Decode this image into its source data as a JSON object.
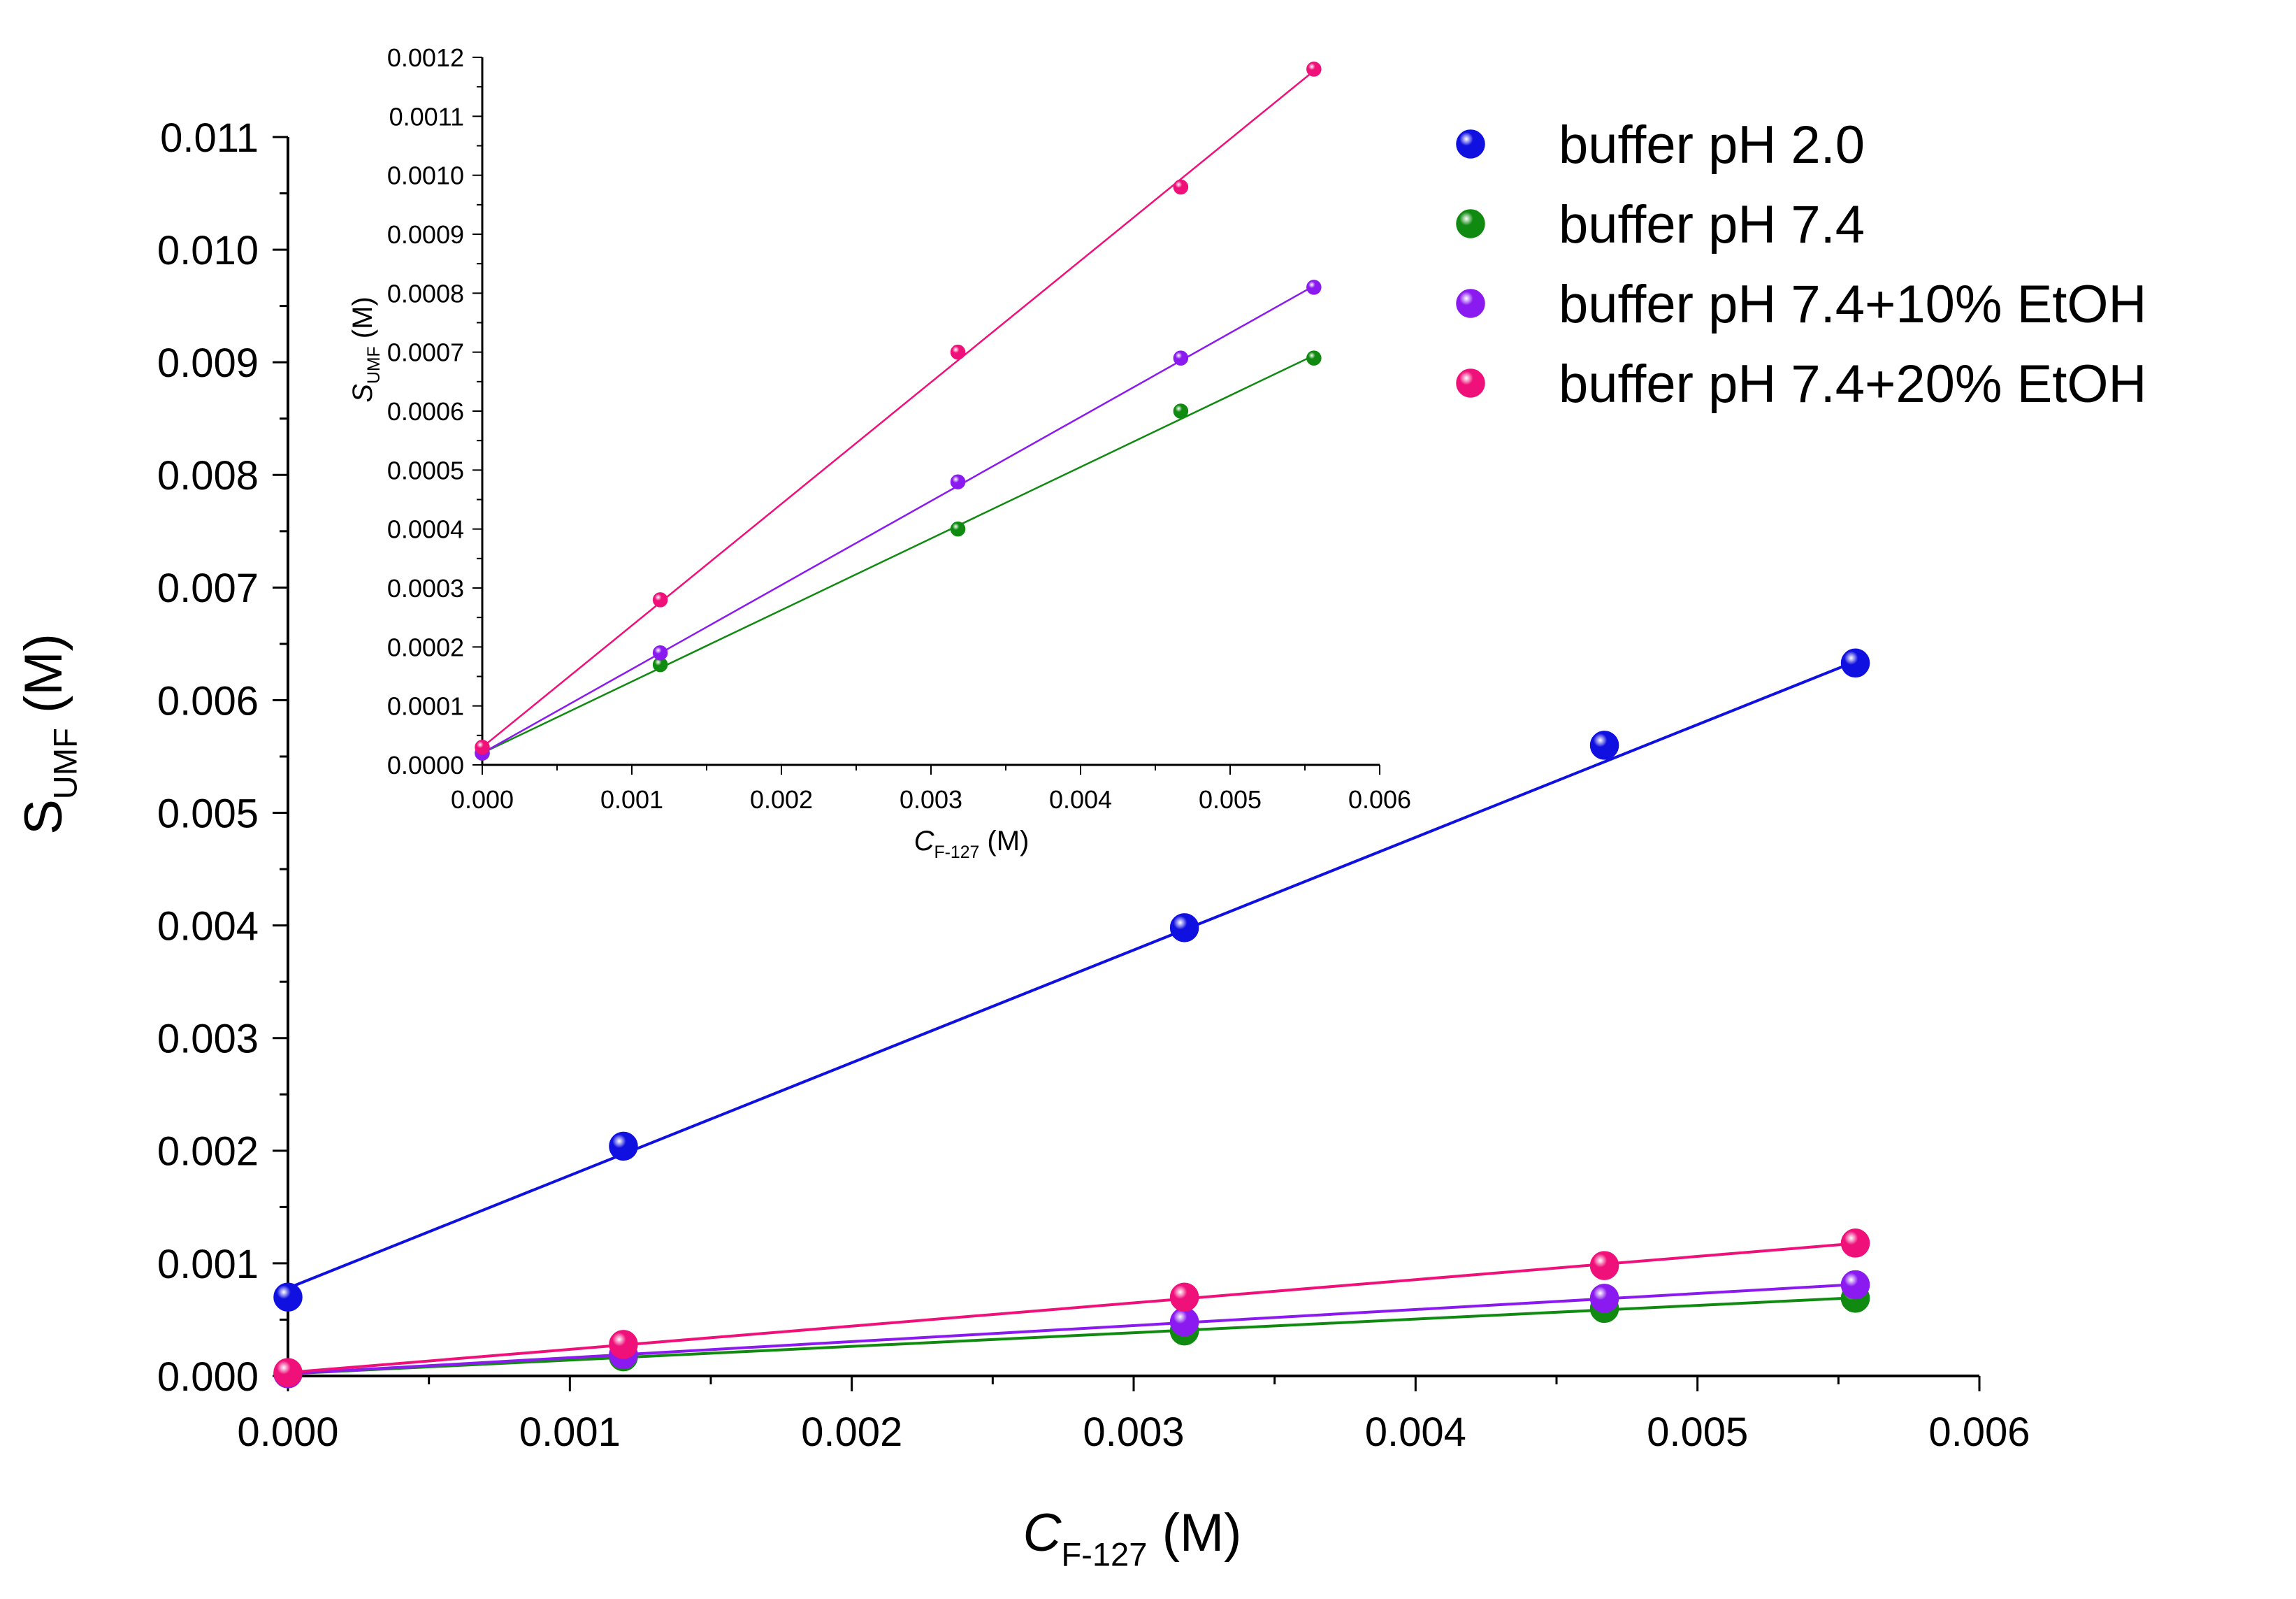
{
  "chart_data": [
    {
      "id": "main",
      "type": "scatter",
      "title": "",
      "xlabel": {
        "main": "C",
        "sub": "F-127",
        "unit": "(M)"
      },
      "ylabel": {
        "main": "S",
        "sub": "UMF",
        "unit": "(M)"
      },
      "xlim": [
        0,
        0.006
      ],
      "ylim": [
        0,
        0.011
      ],
      "x_ticks": [
        "0.000",
        "0.001",
        "0.002",
        "0.003",
        "0.004",
        "0.005",
        "0.006"
      ],
      "y_ticks": [
        "0.000",
        "0.001",
        "0.002",
        "0.003",
        "0.004",
        "0.005",
        "0.006",
        "0.007",
        "0.008",
        "0.009",
        "0.010",
        "0.011"
      ],
      "legend_position": "top-right",
      "series": [
        {
          "name": "buffer pH 2.0",
          "color": "#1010e0",
          "x": [
            0.0,
            0.00119,
            0.00318,
            0.00467,
            0.00556
          ],
          "y": [
            0.0007,
            0.00204,
            0.00398,
            0.0056,
            0.00633
          ],
          "fit": [
            0.00078,
            1.0006
          ]
        },
        {
          "name": "buffer pH 7.4",
          "color": "#108a10",
          "x": [
            0.0,
            0.00119,
            0.00318,
            0.00467,
            0.00556
          ],
          "y": [
            2e-05,
            0.00017,
            0.0004,
            0.0006,
            0.00069
          ],
          "fit": [
            2e-05,
            0.1213
          ]
        },
        {
          "name": "buffer pH 7.4+10% EtOH",
          "color": "#8a1af0",
          "x": [
            0.0,
            0.00119,
            0.00318,
            0.00467,
            0.00556
          ],
          "y": [
            2e-05,
            0.00019,
            0.00048,
            0.00069,
            0.00081
          ],
          "fit": [
            2e-05,
            0.1425
          ]
        },
        {
          "name": "buffer pH 7.4+20% EtOH",
          "color": "#f0107a",
          "x": [
            0.0,
            0.00119,
            0.00318,
            0.00467,
            0.00556
          ],
          "y": [
            3e-05,
            0.00028,
            0.0007,
            0.00098,
            0.00118
          ],
          "fit": [
            3e-05,
            0.2063
          ]
        }
      ]
    },
    {
      "id": "inset",
      "type": "scatter",
      "title": "",
      "xlabel": {
        "main": "C",
        "sub": "F-127",
        "unit": "(M)"
      },
      "ylabel": {
        "main": "S",
        "sub": "UMF",
        "unit": "(M)"
      },
      "xlim": [
        0,
        0.006
      ],
      "ylim": [
        0,
        0.0012
      ],
      "x_ticks": [
        "0.000",
        "0.001",
        "0.002",
        "0.003",
        "0.004",
        "0.005",
        "0.006"
      ],
      "y_ticks": [
        "0.0000",
        "0.0001",
        "0.0002",
        "0.0003",
        "0.0004",
        "0.0005",
        "0.0006",
        "0.0007",
        "0.0008",
        "0.0009",
        "0.0010",
        "0.0011",
        "0.0012"
      ],
      "series": [
        {
          "name": "buffer pH 7.4",
          "color": "#108a10",
          "x": [
            0.0,
            0.00119,
            0.00318,
            0.00467,
            0.00556
          ],
          "y": [
            2e-05,
            0.00017,
            0.0004,
            0.0006,
            0.00069
          ],
          "fit": [
            2e-05,
            0.1213
          ]
        },
        {
          "name": "buffer pH 7.4+10% EtOH",
          "color": "#8a1af0",
          "x": [
            0.0,
            0.00119,
            0.00318,
            0.00467,
            0.00556
          ],
          "y": [
            2e-05,
            0.00019,
            0.00048,
            0.00069,
            0.00081
          ],
          "fit": [
            2e-05,
            0.1425
          ]
        },
        {
          "name": "buffer pH 7.4+20% EtOH",
          "color": "#f0107a",
          "x": [
            0.0,
            0.00119,
            0.00318,
            0.00467,
            0.00556
          ],
          "y": [
            3e-05,
            0.00028,
            0.0007,
            0.00098,
            0.00118
          ],
          "fit": [
            3e-05,
            0.2063
          ]
        }
      ]
    }
  ]
}
